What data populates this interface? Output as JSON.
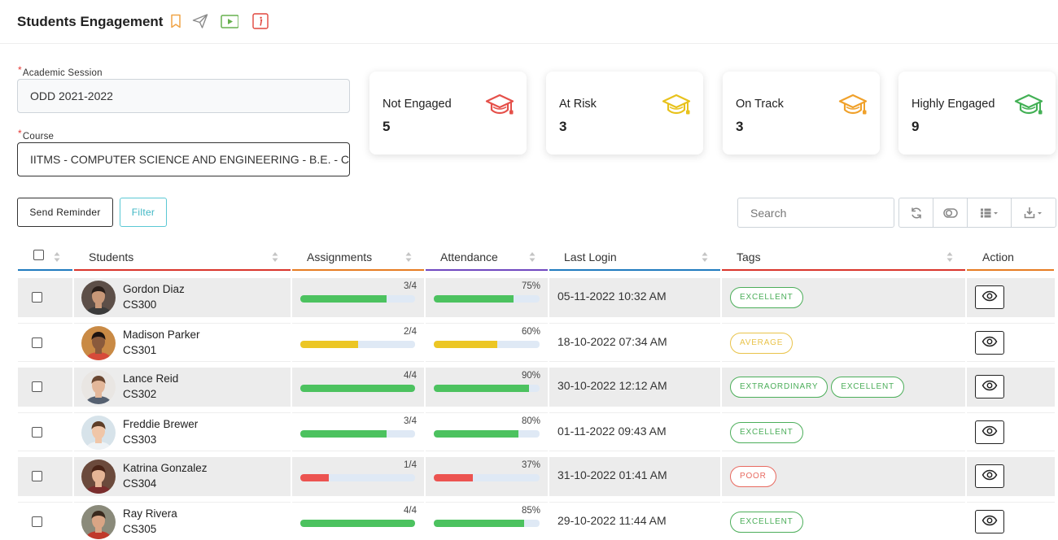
{
  "header": {
    "title": "Students Engagement",
    "icons": [
      "bookmark-icon",
      "send-icon",
      "play-icon",
      "info-icon"
    ]
  },
  "form": {
    "session_label": "Academic Session",
    "session_value": "ODD 2021-2022",
    "course_label": "Course",
    "course_value": "IITMS - COMPUTER SCIENCE AND ENGINEERING - B.E. - C"
  },
  "cards": [
    {
      "label": "Not Engaged",
      "value": "5",
      "color": "#e5504a"
    },
    {
      "label": "At Risk",
      "value": "3",
      "color": "#e8c21c"
    },
    {
      "label": "On Track",
      "value": "3",
      "color": "#f0a12b"
    },
    {
      "label": "Highly Engaged",
      "value": "9",
      "color": "#43b055"
    }
  ],
  "toolbar": {
    "reminder_label": "Send Reminder",
    "filter_label": "Filter",
    "search_placeholder": "Search",
    "tools": [
      "refresh-icon",
      "toggle-icon",
      "columns-icon",
      "export-icon"
    ]
  },
  "table": {
    "headers": {
      "students": "Students",
      "assignments": "Assignments",
      "attendance": "Attendance",
      "last_login": "Last Login",
      "tags": "Tags",
      "action": "Action"
    },
    "header_colors": [
      "#1f7bbf",
      "#d9342b",
      "#e67c22",
      "#7048c0",
      "#1f7bbf",
      "#d9342b",
      "#e67c22"
    ],
    "rows": [
      {
        "name": "Gordon Diaz",
        "code": "CS300",
        "assign_text": "3/4",
        "assign_frac": 0.75,
        "assign_color": "#4cc25f",
        "attend_text": "75%",
        "attend_frac": 0.75,
        "attend_color": "#4cc25f",
        "last_login": "05-11-2022 10:32 AM",
        "tags": [
          {
            "label": "EXCELLENT",
            "color": "#4cae5a"
          }
        ]
      },
      {
        "name": "Madison Parker",
        "code": "CS301",
        "assign_text": "2/4",
        "assign_frac": 0.5,
        "assign_color": "#ecc624",
        "attend_text": "60%",
        "attend_frac": 0.6,
        "attend_color": "#ecc624",
        "last_login": "18-10-2022 07:34 AM",
        "tags": [
          {
            "label": "AVERAGE",
            "color": "#e9c34a"
          }
        ]
      },
      {
        "name": "Lance Reid",
        "code": "CS302",
        "assign_text": "4/4",
        "assign_frac": 1.0,
        "assign_color": "#4cc25f",
        "attend_text": "90%",
        "attend_frac": 0.9,
        "attend_color": "#4cc25f",
        "last_login": "30-10-2022 12:12 AM",
        "tags": [
          {
            "label": "EXTRAORDINARY",
            "color": "#4cae5a"
          },
          {
            "label": "EXCELLENT",
            "color": "#4cae5a"
          }
        ]
      },
      {
        "name": "Freddie Brewer",
        "code": "CS303",
        "assign_text": "3/4",
        "assign_frac": 0.75,
        "assign_color": "#4cc25f",
        "attend_text": "80%",
        "attend_frac": 0.8,
        "attend_color": "#4cc25f",
        "last_login": "01-11-2022 09:43 AM",
        "tags": [
          {
            "label": "EXCELLENT",
            "color": "#4cae5a"
          }
        ]
      },
      {
        "name": "Katrina Gonzalez",
        "code": "CS304",
        "assign_text": "1/4",
        "assign_frac": 0.25,
        "assign_color": "#ec5350",
        "attend_text": "37%",
        "attend_frac": 0.37,
        "attend_color": "#ec5350",
        "last_login": "31-10-2022 01:41 AM",
        "tags": [
          {
            "label": "POOR",
            "color": "#e86a60"
          }
        ]
      },
      {
        "name": "Ray Rivera",
        "code": "CS305",
        "assign_text": "4/4",
        "assign_frac": 1.0,
        "assign_color": "#4cc25f",
        "attend_text": "85%",
        "attend_frac": 0.85,
        "attend_color": "#4cc25f",
        "last_login": "29-10-2022 11:44 AM",
        "tags": [
          {
            "label": "EXCELLENT",
            "color": "#4cae5a"
          }
        ]
      }
    ]
  }
}
